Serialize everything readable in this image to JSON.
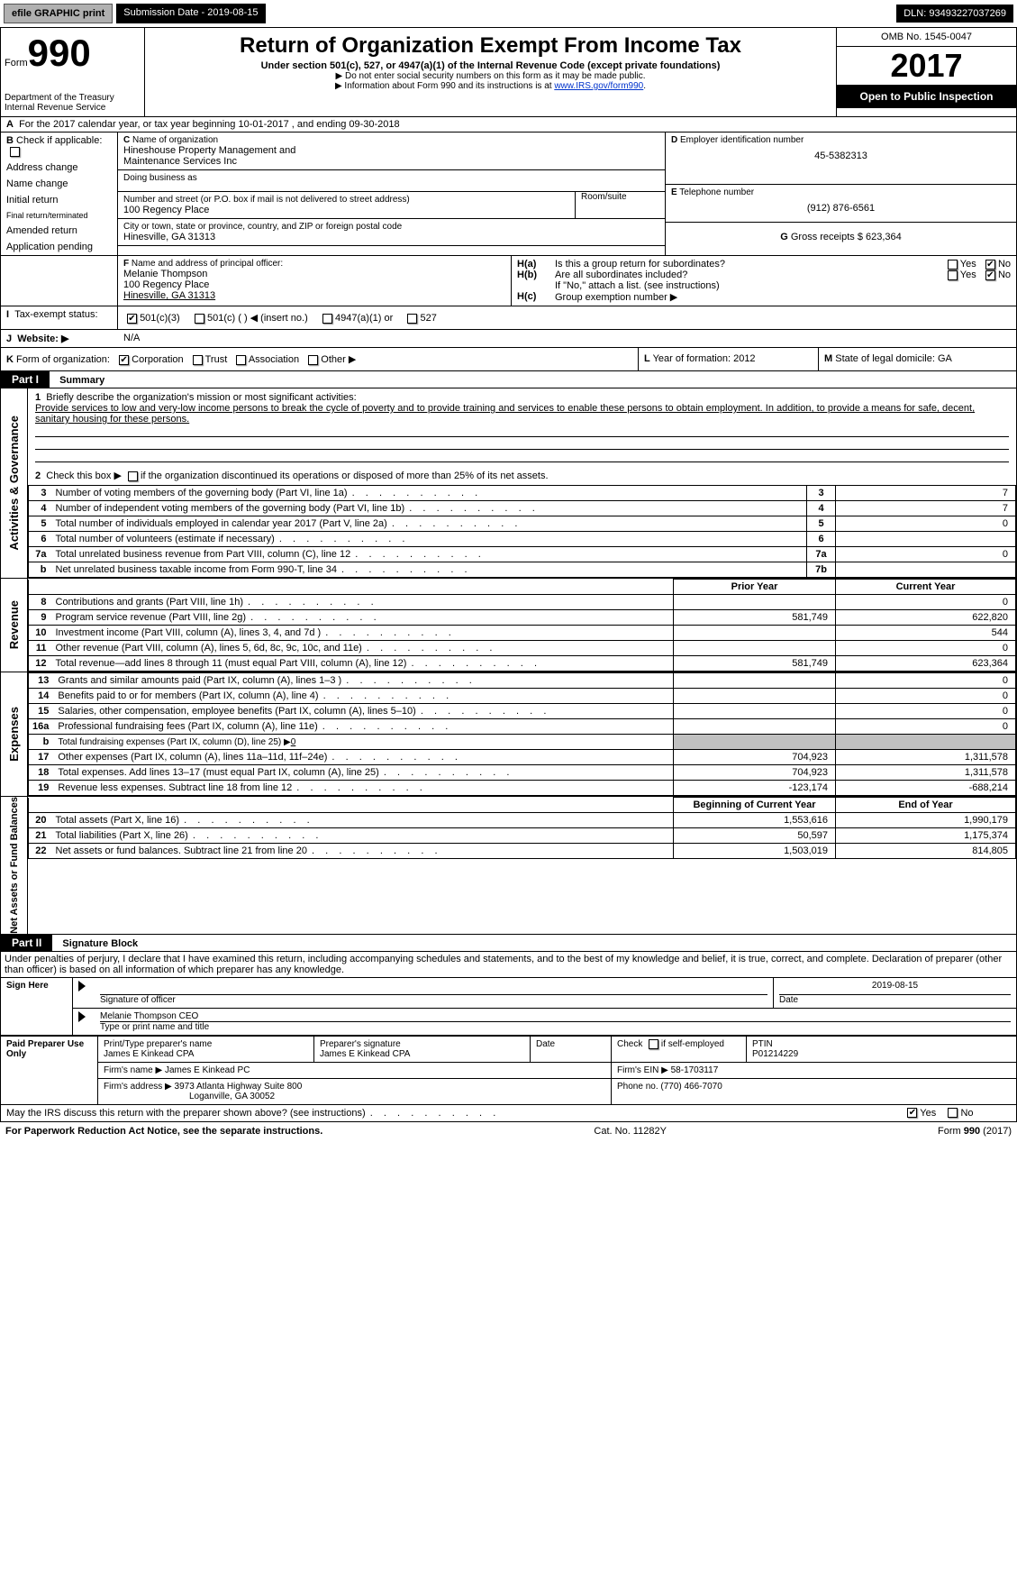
{
  "topbar": {
    "efile": "efile GRAPHIC print",
    "submission_label": "Submission Date - ",
    "submission_date": "2019-08-15",
    "dln_label": "DLN: ",
    "dln": "93493227037269"
  },
  "header": {
    "form_prefix": "Form",
    "form_number": "990",
    "dept": "Department of the Treasury",
    "irs": "Internal Revenue Service",
    "title": "Return of Organization Exempt From Income Tax",
    "subtitle": "Under section 501(c), 527, or 4947(a)(1) of the Internal Revenue Code (except private foundations)",
    "note1": "Do not enter social security numbers on this form as it may be made public.",
    "note2_prefix": "Information about Form 990 and its instructions is at ",
    "note2_link": "www.IRS.gov/form990",
    "omb": "OMB No. 1545-0047",
    "year": "2017",
    "open": "Open to Public Inspection"
  },
  "section_a": {
    "line": "For the 2017 calendar year, or tax year beginning 10-01-2017          , and ending 09-30-2018"
  },
  "section_b": {
    "label": "Check if applicable:",
    "items": [
      "Address change",
      "Name change",
      "Initial return",
      "Final return/terminated",
      "Amended return",
      "Application pending"
    ]
  },
  "section_c": {
    "label": "Name of organization",
    "name1": "Hineshouse Property Management and",
    "name2": "Maintenance Services Inc",
    "dba_label": "Doing business as",
    "dba": "",
    "addr_label": "Number and street (or P.O. box if mail is not delivered to street address)",
    "room_label": "Room/suite",
    "addr": "100 Regency Place",
    "city_label": "City or town, state or province, country, and ZIP or foreign postal code",
    "city": "Hinesville, GA  31313"
  },
  "section_d": {
    "label": "Employer identification number",
    "ein": "45-5382313"
  },
  "section_e": {
    "label": "Telephone number",
    "phone": "(912) 876-6561"
  },
  "section_g": {
    "label": "Gross receipts $ ",
    "amount": "623,364"
  },
  "section_f": {
    "label": "Name and address of principal officer:",
    "name": "Melanie Thompson",
    "addr1": "100 Regency Place",
    "addr2": "Hinesville, GA  31313"
  },
  "section_h": {
    "a_label": "Is this a group return for subordinates?",
    "b_label": "Are all subordinates included?",
    "b_note": "If \"No,\" attach a list. (see instructions)",
    "c_label": "Group exemption number ▶",
    "yes": "Yes",
    "no": "No"
  },
  "section_i": {
    "label": "Tax-exempt status:",
    "opts": [
      "501(c)(3)",
      "501(c) (  ) ◀ (insert no.)",
      "4947(a)(1) or",
      "527"
    ]
  },
  "section_j": {
    "label": "Website: ▶",
    "value": "N/A"
  },
  "section_k": {
    "label": "Form of organization:",
    "opts": [
      "Corporation",
      "Trust",
      "Association",
      "Other ▶"
    ]
  },
  "section_l": {
    "label": "Year of formation: ",
    "value": "2012"
  },
  "section_m": {
    "label": "State of legal domicile: ",
    "value": "GA"
  },
  "part1": {
    "header": "Part I",
    "title": "Summary"
  },
  "summary": {
    "side1": "Activities & Governance",
    "side2": "Revenue",
    "side3": "Expenses",
    "side4": "Net Assets or Fund Balances",
    "q1": "Briefly describe the organization's mission or most significant activities:",
    "mission": "Provide services to low and very-low income persons to break the cycle of poverty and to provide training and services to enable these persons to obtain employment. In addition, to provide a means for safe, decent, sanitary housing for these persons.",
    "q2": "Check this box ▶",
    "q2b": "if the organization discontinued its operations or disposed of more than 25% of its net assets.",
    "lines": [
      {
        "n": "3",
        "t": "Number of voting members of the governing body (Part VI, line 1a)",
        "box": "3",
        "v": "7"
      },
      {
        "n": "4",
        "t": "Number of independent voting members of the governing body (Part VI, line 1b)",
        "box": "4",
        "v": "7"
      },
      {
        "n": "5",
        "t": "Total number of individuals employed in calendar year 2017 (Part V, line 2a)",
        "box": "5",
        "v": "0"
      },
      {
        "n": "6",
        "t": "Total number of volunteers (estimate if necessary)",
        "box": "6",
        "v": ""
      },
      {
        "n": "7a",
        "t": "Total unrelated business revenue from Part VIII, column (C), line 12",
        "box": "7a",
        "v": "0"
      },
      {
        "n": "b",
        "t": "Net unrelated business taxable income from Form 990-T, line 34",
        "box": "7b",
        "v": ""
      }
    ],
    "col_prior": "Prior Year",
    "col_current": "Current Year",
    "rev": [
      {
        "n": "8",
        "t": "Contributions and grants (Part VIII, line 1h)",
        "p": "",
        "c": "0"
      },
      {
        "n": "9",
        "t": "Program service revenue (Part VIII, line 2g)",
        "p": "581,749",
        "c": "622,820"
      },
      {
        "n": "10",
        "t": "Investment income (Part VIII, column (A), lines 3, 4, and 7d )",
        "p": "",
        "c": "544"
      },
      {
        "n": "11",
        "t": "Other revenue (Part VIII, column (A), lines 5, 6d, 8c, 9c, 10c, and 11e)",
        "p": "",
        "c": "0"
      },
      {
        "n": "12",
        "t": "Total revenue—add lines 8 through 11 (must equal Part VIII, column (A), line 12)",
        "p": "581,749",
        "c": "623,364"
      }
    ],
    "exp": [
      {
        "n": "13",
        "t": "Grants and similar amounts paid (Part IX, column (A), lines 1–3 )",
        "p": "",
        "c": "0"
      },
      {
        "n": "14",
        "t": "Benefits paid to or for members (Part IX, column (A), line 4)",
        "p": "",
        "c": "0"
      },
      {
        "n": "15",
        "t": "Salaries, other compensation, employee benefits (Part IX, column (A), lines 5–10)",
        "p": "",
        "c": "0"
      },
      {
        "n": "16a",
        "t": "Professional fundraising fees (Part IX, column (A), line 11e)",
        "p": "",
        "c": "0"
      }
    ],
    "line_b": {
      "n": "b",
      "t": "Total fundraising expenses (Part IX, column (D), line 25) ▶",
      "v": "0"
    },
    "exp2": [
      {
        "n": "17",
        "t": "Other expenses (Part IX, column (A), lines 11a–11d, 11f–24e)",
        "p": "704,923",
        "c": "1,311,578"
      },
      {
        "n": "18",
        "t": "Total expenses. Add lines 13–17 (must equal Part IX, column (A), line 25)",
        "p": "704,923",
        "c": "1,311,578"
      },
      {
        "n": "19",
        "t": "Revenue less expenses. Subtract line 18 from line 12",
        "p": "-123,174",
        "c": "-688,214"
      }
    ],
    "col_begin": "Beginning of Current Year",
    "col_end": "End of Year",
    "net": [
      {
        "n": "20",
        "t": "Total assets (Part X, line 16)",
        "p": "1,553,616",
        "c": "1,990,179"
      },
      {
        "n": "21",
        "t": "Total liabilities (Part X, line 26)",
        "p": "50,597",
        "c": "1,175,374"
      },
      {
        "n": "22",
        "t": "Net assets or fund balances. Subtract line 21 from line 20",
        "p": "1,503,019",
        "c": "814,805"
      }
    ]
  },
  "part2": {
    "header": "Part II",
    "title": "Signature Block",
    "decl": "Under penalties of perjury, I declare that I have examined this return, including accompanying schedules and statements, and to the best of my knowledge and belief, it is true, correct, and complete. Declaration of preparer (other than officer) is based on all information of which preparer has any knowledge."
  },
  "sign": {
    "here": "Sign Here",
    "sig_officer": "Signature of officer",
    "date": "Date",
    "date_val": "2019-08-15",
    "name": "Melanie Thompson CEO",
    "name_label": "Type or print name and title"
  },
  "paid": {
    "title": "Paid Preparer Use Only",
    "prep_label": "Print/Type preparer's name",
    "prep_name": "James E Kinkead CPA",
    "prep_sig_label": "Preparer's signature",
    "prep_sig": "James E Kinkead CPA",
    "date_label": "Date",
    "check_label": "Check",
    "self_emp": "if self-employed",
    "ptin_label": "PTIN",
    "ptin": "P01214229",
    "firm_name_label": "Firm's name     ▶ ",
    "firm_name": "James E Kinkead PC",
    "firm_ein_label": "Firm's EIN ▶ ",
    "firm_ein": "58-1703117",
    "firm_addr_label": "Firm's address ▶ ",
    "firm_addr1": "3973 Atlanta Highway Suite 800",
    "firm_addr2": "Loganville, GA  30052",
    "phone_label": "Phone no. ",
    "phone": "(770) 466-7070"
  },
  "discuss": {
    "q": "May the IRS discuss this return with the preparer shown above? (see instructions)",
    "yes": "Yes",
    "no": "No"
  },
  "footer": {
    "left": "For Paperwork Reduction Act Notice, see the separate instructions.",
    "mid": "Cat. No. 11282Y",
    "right_prefix": "Form ",
    "right_form": "990",
    "right_suffix": " (2017)"
  }
}
